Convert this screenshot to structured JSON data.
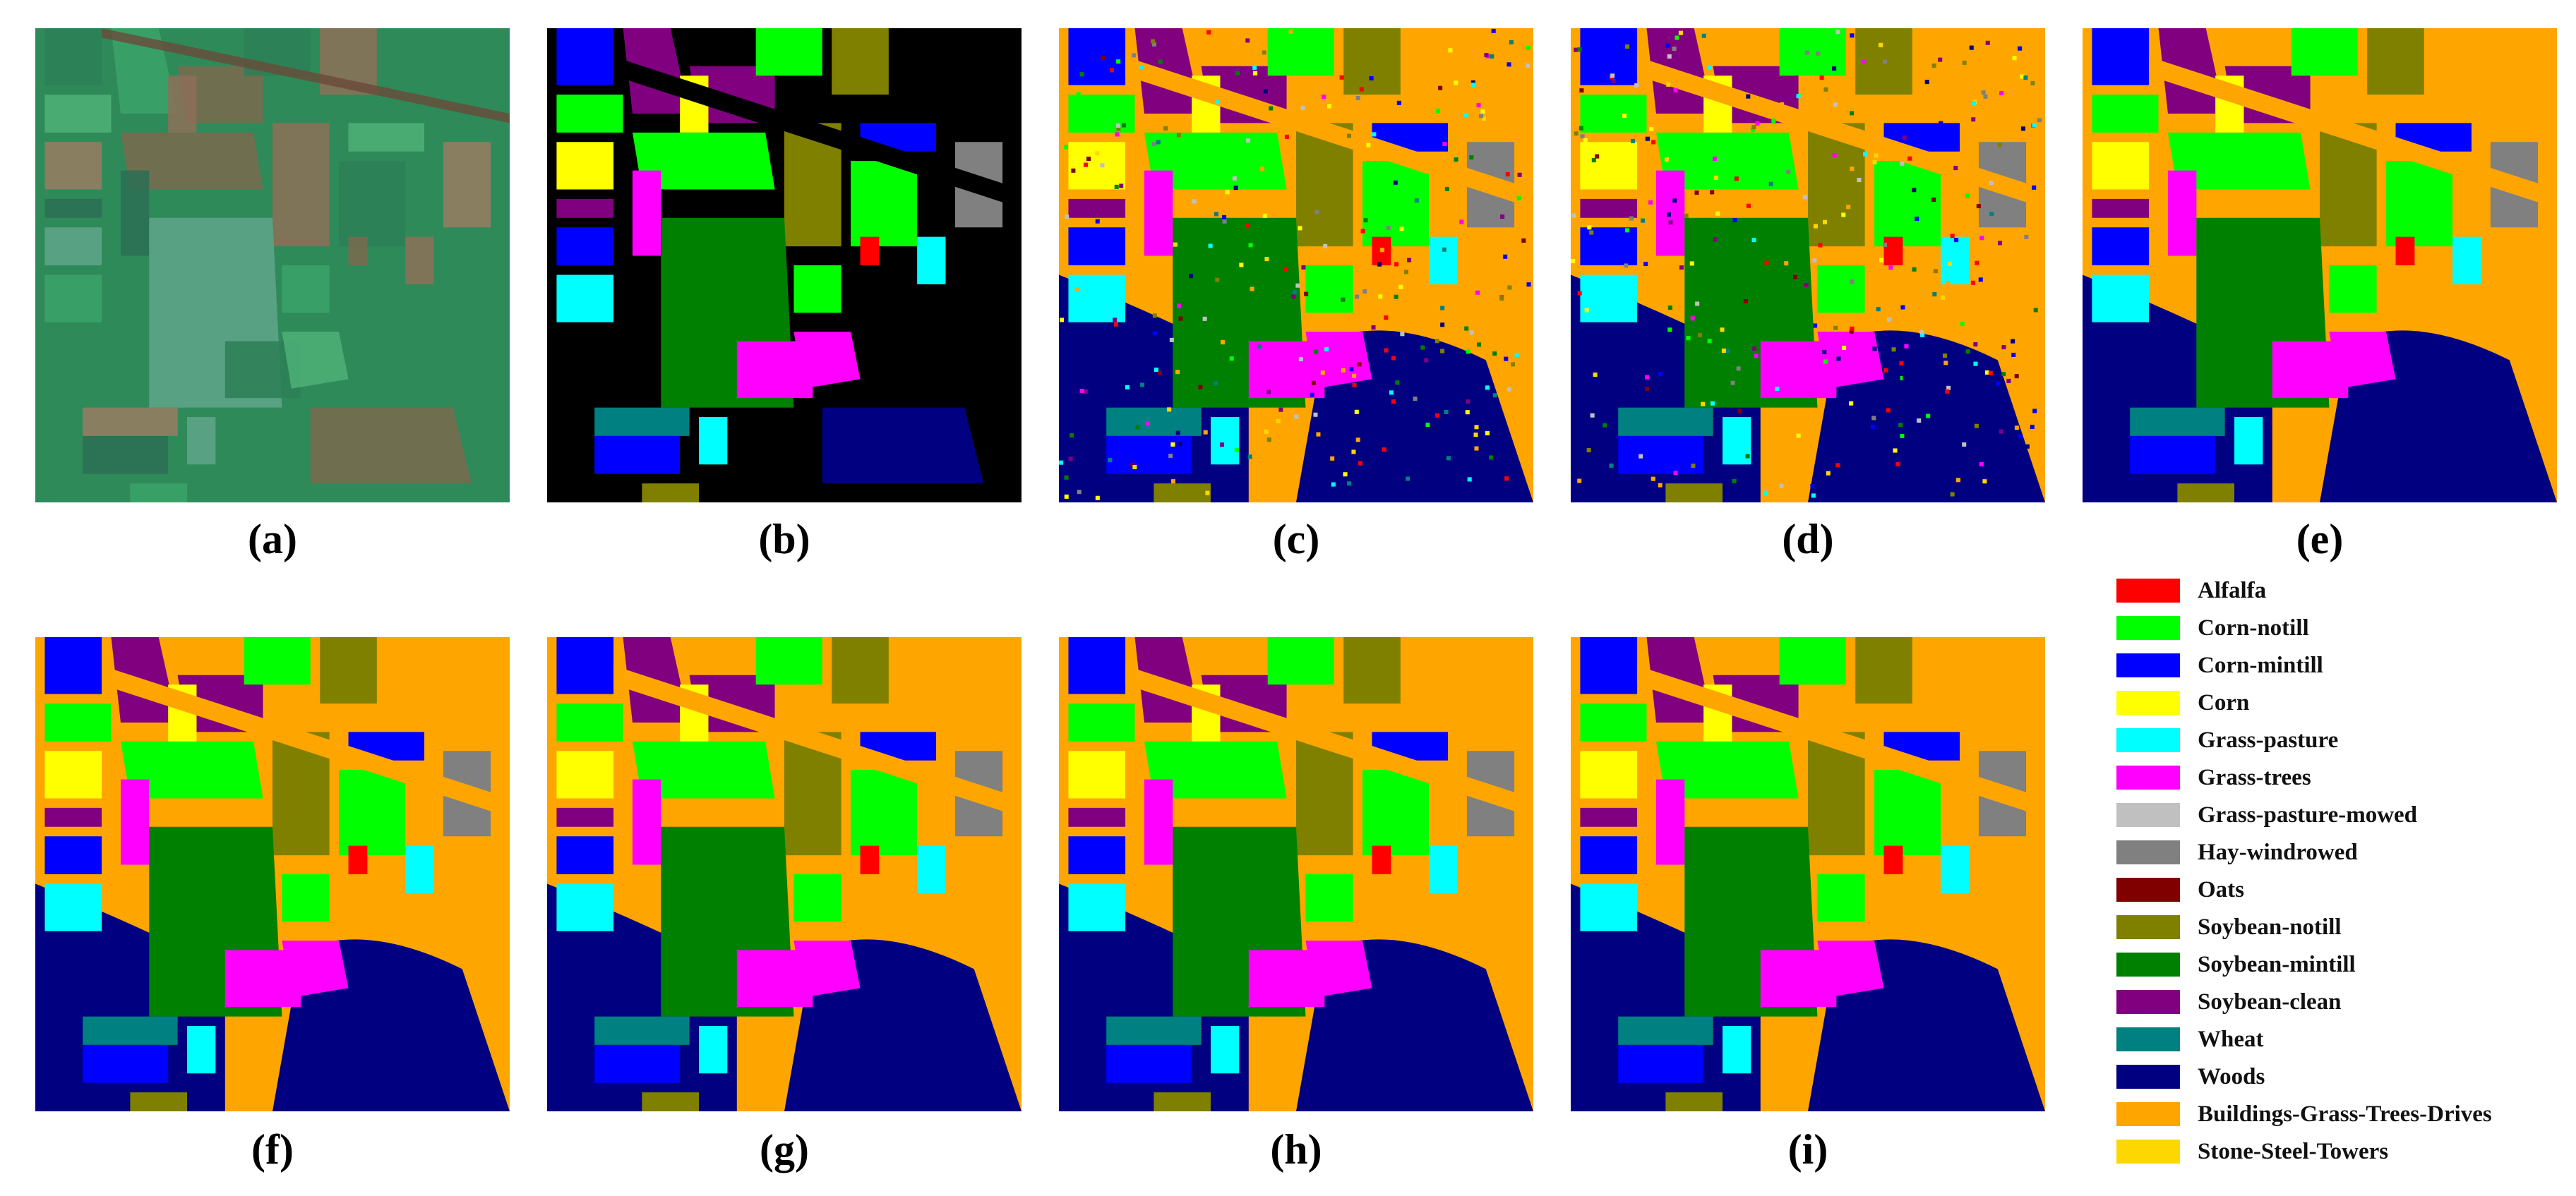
{
  "captions": [
    "(a)",
    "(b)",
    "(c)",
    "(d)",
    "(e)",
    "(f)",
    "(g)",
    "(h)",
    "(i)"
  ],
  "panels": [
    {
      "name": "false-color-image",
      "kind": "satellite"
    },
    {
      "name": "ground-truth-map",
      "kind": "ground-truth"
    },
    {
      "name": "classification-map-c",
      "kind": "noisy"
    },
    {
      "name": "classification-map-d",
      "kind": "noisy"
    },
    {
      "name": "classification-map-e",
      "kind": "smooth"
    },
    {
      "name": "classification-map-f",
      "kind": "smooth"
    },
    {
      "name": "classification-map-g",
      "kind": "smooth"
    },
    {
      "name": "classification-map-h",
      "kind": "smooth"
    },
    {
      "name": "classification-map-i",
      "kind": "smooth"
    }
  ],
  "legend": [
    {
      "label": "Alfalfa",
      "color": "#ff0000"
    },
    {
      "label": "Corn-notill",
      "color": "#00ff00"
    },
    {
      "label": "Corn-mintill",
      "color": "#0000ff"
    },
    {
      "label": "Corn",
      "color": "#ffff00"
    },
    {
      "label": "Grass-pasture",
      "color": "#00ffff"
    },
    {
      "label": "Grass-trees",
      "color": "#ff00ff"
    },
    {
      "label": "Grass-pasture-mowed",
      "color": "#c0c0c0"
    },
    {
      "label": "Hay-windrowed",
      "color": "#808080"
    },
    {
      "label": "Oats",
      "color": "#800000"
    },
    {
      "label": "Soybean-notill",
      "color": "#808000"
    },
    {
      "label": "Soybean-mintill",
      "color": "#008000"
    },
    {
      "label": "Soybean-clean",
      "color": "#800080"
    },
    {
      "label": "Wheat",
      "color": "#008080"
    },
    {
      "label": "Woods",
      "color": "#000080"
    },
    {
      "label": "Buildings-Grass-Trees-Drives",
      "color": "#ffa500"
    },
    {
      "label": "Stone-Steel-Towers",
      "color": "#ffd700"
    }
  ]
}
